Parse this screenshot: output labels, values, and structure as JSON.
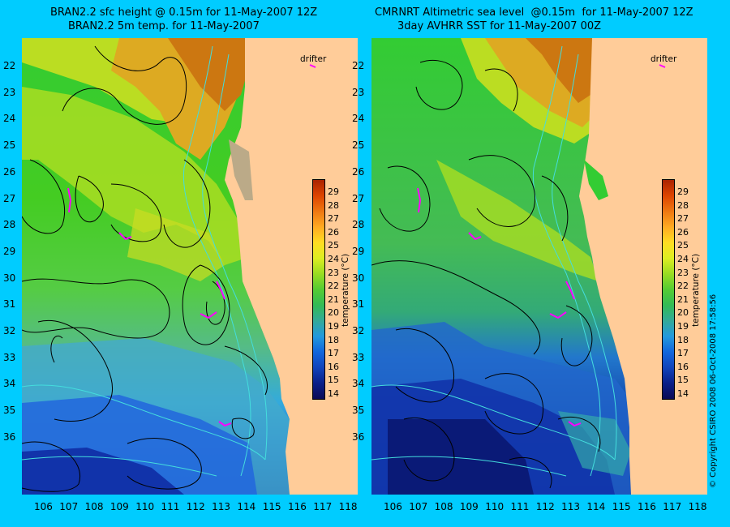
{
  "left_panel": {
    "title_line1": "BRAN2.2 sfc height @ 0.15m for 11-May-2007 12Z",
    "title_line2": "BRAN2.2 5m temp. for 11-May-2007",
    "drifter_label": "drifter",
    "colorbar_label": "temperature (°C)"
  },
  "right_panel": {
    "title_line1": "CMRNRT Altimetric sea level  @0.15m  for 11-May-2007 12Z",
    "title_line2": "3day AVHRR SST for 11-May-2007 00Z",
    "drifter_label": "drifter",
    "colorbar_label": "temperature (°C)"
  },
  "copyright": "© Copyright CSIRO 2008   06-Oct-2008 17:58:56",
  "lon_ticks": [
    "106",
    "107",
    "108",
    "109",
    "110",
    "111",
    "112",
    "113",
    "114",
    "115",
    "116",
    "117",
    "118"
  ],
  "lat_ticks": [
    "22",
    "23",
    "24",
    "25",
    "26",
    "27",
    "28",
    "29",
    "30",
    "31",
    "32",
    "33",
    "34",
    "35",
    "36"
  ],
  "colorbar_ticks": [
    "29",
    "28",
    "27",
    "26",
    "25",
    "24",
    "23",
    "22",
    "21",
    "20",
    "19",
    "18",
    "17",
    "16",
    "15",
    "14"
  ],
  "colors": {
    "background": "#00CCFF",
    "land": "#FFCC99",
    "contour": "#000000",
    "bathymetry": "#44DDDD",
    "drifter": "#FF00FF"
  }
}
